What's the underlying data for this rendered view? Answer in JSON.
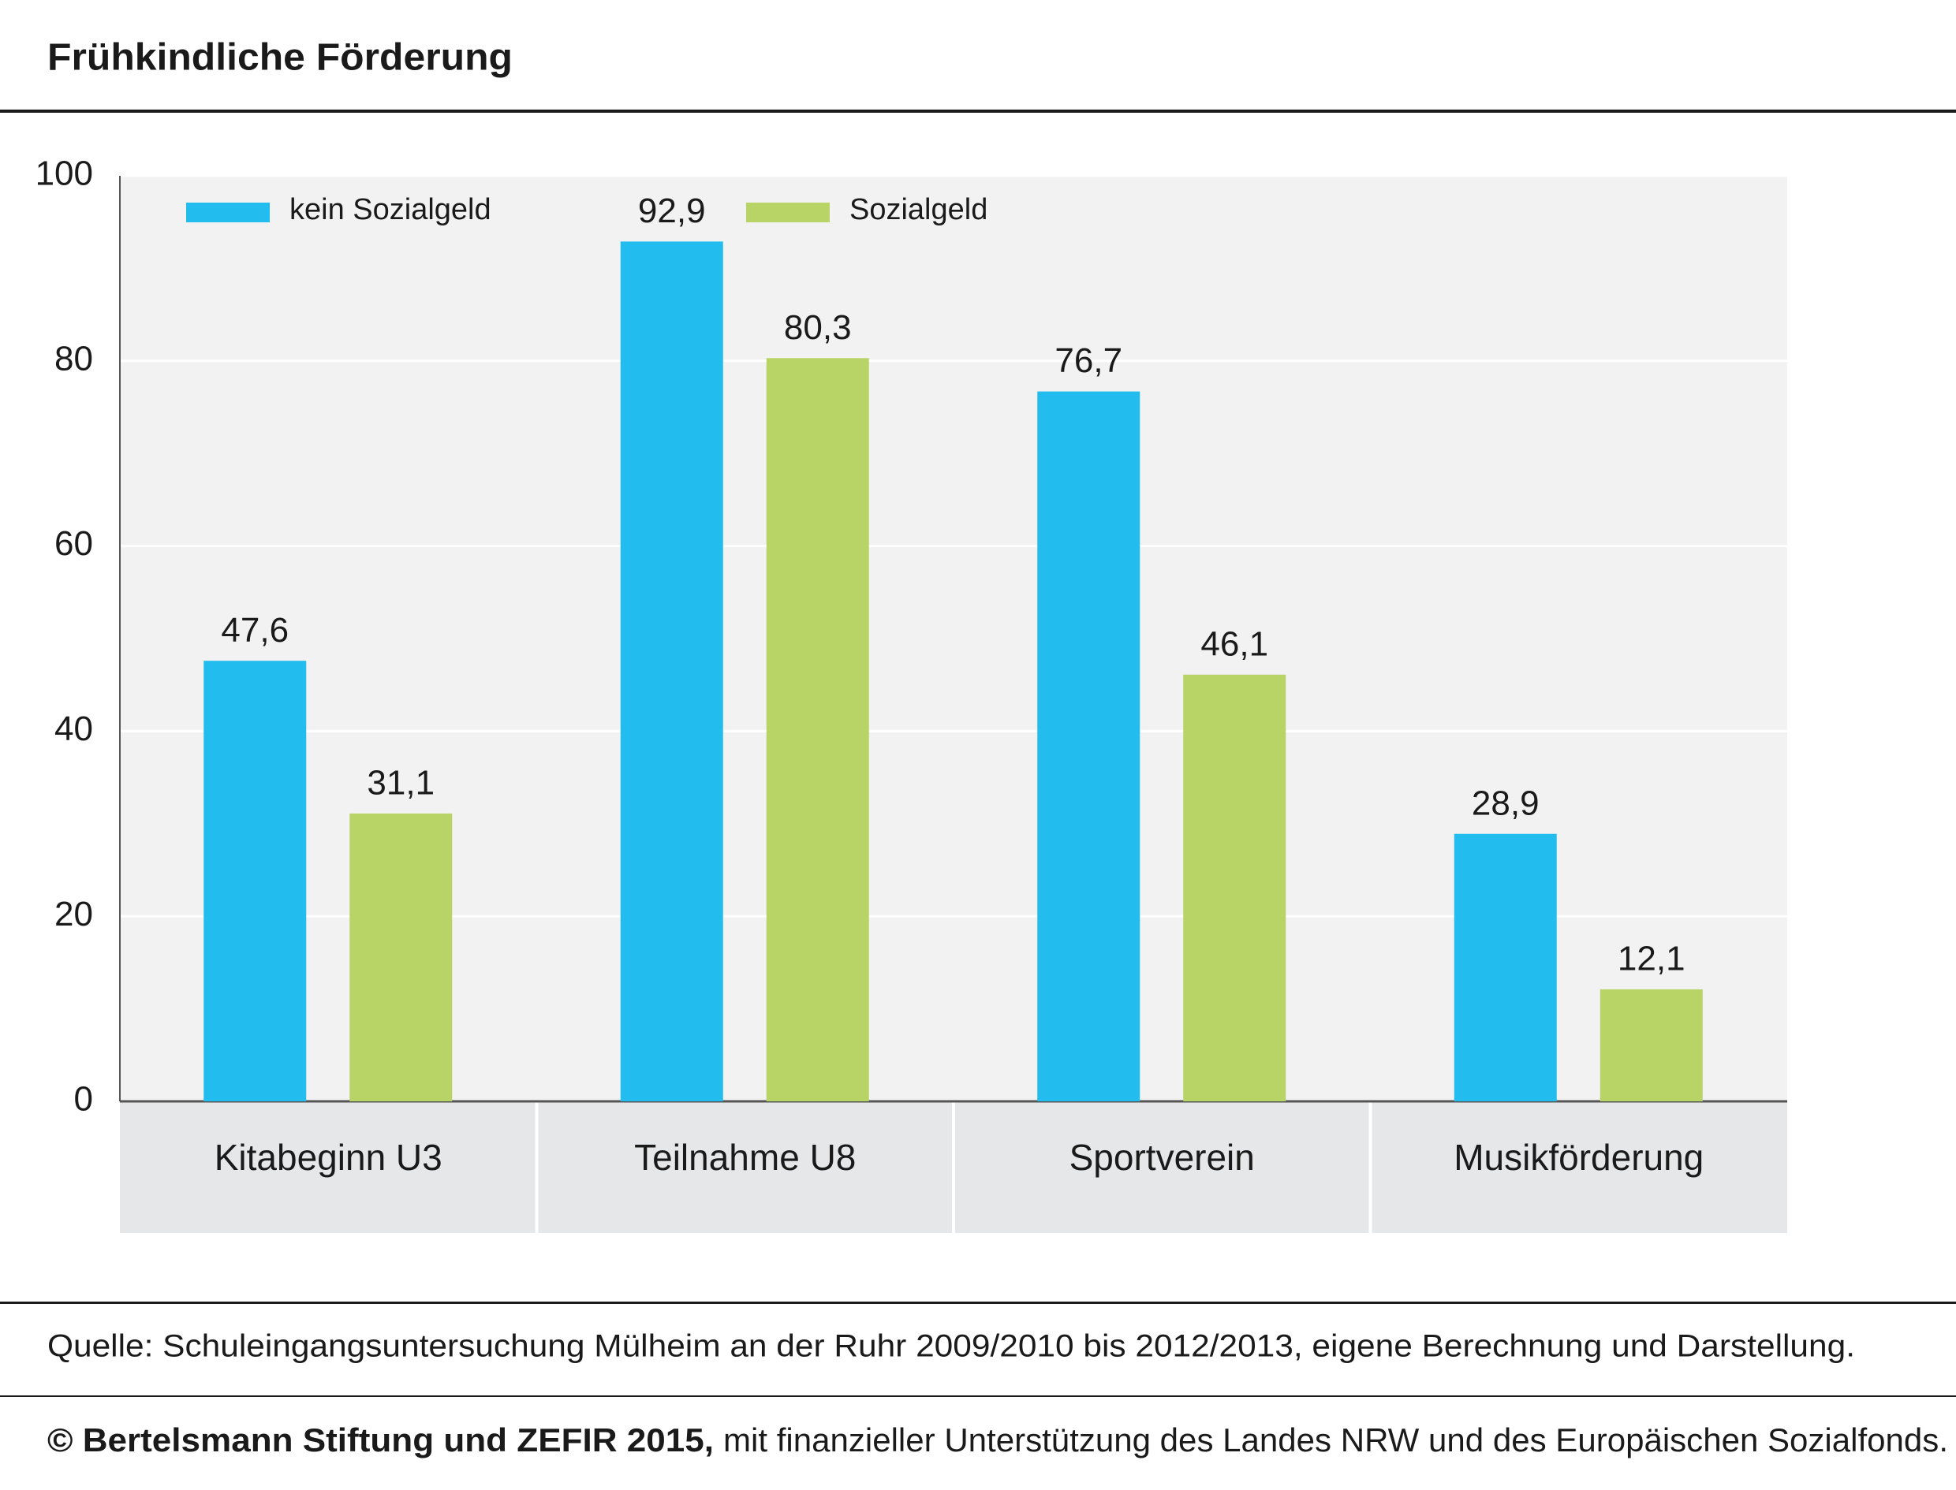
{
  "chart_data": {
    "type": "bar",
    "title": "Frühkindliche Förderung",
    "categories": [
      "Kitabeginn U3",
      "Teilnahme U8",
      "Sportverein",
      "Musikförderung"
    ],
    "series": [
      {
        "name": "kein Sozialgeld",
        "color": "#22bdee",
        "values": [
          47.6,
          92.9,
          76.7,
          28.9
        ],
        "value_labels": [
          "47,6",
          "92,9",
          "76,7",
          "28,9"
        ]
      },
      {
        "name": "Sozialgeld",
        "color": "#b8d366",
        "values": [
          31.1,
          80.3,
          46.1,
          12.1
        ],
        "value_labels": [
          "31,1",
          "80,3",
          "46,1",
          "12,1"
        ]
      }
    ],
    "ylim": [
      0,
      100
    ],
    "yticks": [
      0,
      20,
      40,
      60,
      80,
      100
    ],
    "grid": true
  },
  "footer": {
    "source": "Quelle: Schuleingangsuntersuchung Mülheim an der Ruhr 2009/2010 bis 2012/2013, eigene Berechnung und Darstellung.",
    "copyright_bold": "© Bertelsmann Stiftung und ZEFIR 2015,",
    "copyright_text": "mit finanzieller Unterstützung des Landes NRW und des Europäischen Sozialfonds."
  }
}
